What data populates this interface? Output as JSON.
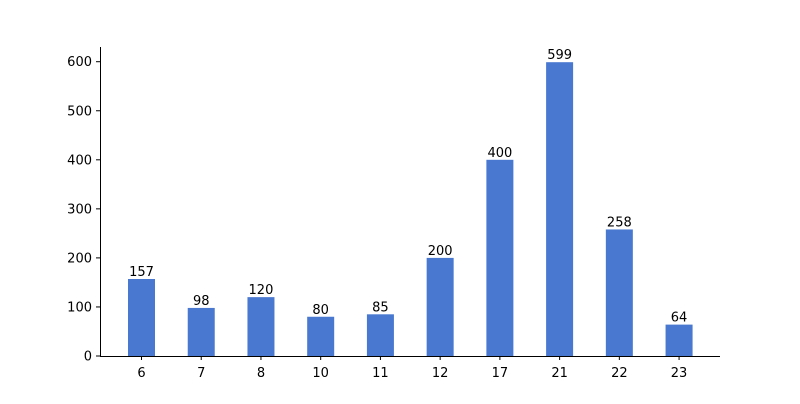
{
  "chart_data": {
    "type": "bar",
    "categories": [
      "6",
      "7",
      "8",
      "10",
      "11",
      "12",
      "17",
      "21",
      "22",
      "23"
    ],
    "values": [
      157,
      98,
      120,
      80,
      85,
      200,
      400,
      599,
      258,
      64
    ],
    "title": "",
    "xlabel": "",
    "ylabel": "",
    "ylim": [
      0,
      630
    ],
    "yticks": [
      0,
      100,
      200,
      300,
      400,
      500,
      600
    ],
    "grid": false,
    "legend": "none",
    "bar_color": "#4878d0",
    "show_data_labels": true
  }
}
